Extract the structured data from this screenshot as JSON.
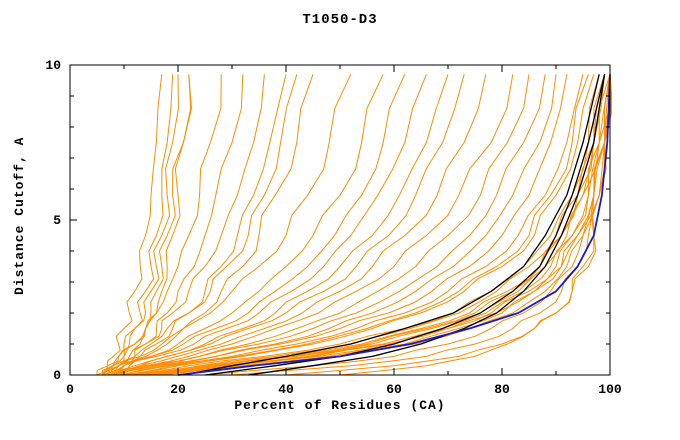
{
  "chart_data": {
    "type": "line",
    "title": "T1050-D3",
    "xlabel": "Percent of Residues (CA)",
    "ylabel": "Distance Cutoff, A",
    "xlim": [
      0,
      100
    ],
    "ylim": [
      0,
      10
    ],
    "x_major_ticks": [
      0,
      20,
      40,
      60,
      80,
      100
    ],
    "x_minor_step": 10,
    "y_major_ticks": [
      0,
      5,
      10
    ],
    "y_minor_step": 1,
    "grid": false,
    "legend": "none",
    "colors": {
      "predictions": "#ff8c00",
      "highlighted": "#000000",
      "best_model": "#1a1acd",
      "axis": "#000000",
      "background": "#ffffff"
    },
    "y_grid": [
      0,
      0.3,
      0.6,
      1.0,
      1.5,
      2.0,
      2.7,
      3.5,
      4.5,
      5.8,
      7.5,
      9.7
    ],
    "series": [
      {
        "name": "predictions",
        "color": "#ff8c00",
        "width": 1,
        "jitter": 1.0,
        "lines": [
          [
            6,
            7,
            8,
            9,
            10,
            11,
            12,
            13,
            14,
            15,
            16,
            17
          ],
          [
            7,
            8,
            9,
            10,
            12,
            13,
            14,
            15,
            16,
            17,
            18,
            19
          ],
          [
            6,
            8,
            10,
            11,
            12,
            14,
            15,
            16,
            17,
            18,
            19,
            20
          ],
          [
            8,
            9,
            11,
            13,
            14,
            15,
            16,
            17,
            18,
            19,
            21,
            22
          ],
          [
            5,
            7,
            9,
            12,
            14,
            16,
            17,
            18,
            19,
            20,
            21,
            22
          ],
          [
            6,
            8,
            10,
            12,
            14,
            16,
            18,
            20,
            22,
            24,
            26,
            28
          ],
          [
            7,
            9,
            12,
            14,
            16,
            18,
            20,
            23,
            25,
            27,
            30,
            32
          ],
          [
            6,
            9,
            11,
            14,
            17,
            19,
            22,
            25,
            28,
            31,
            34,
            36
          ],
          [
            8,
            10,
            13,
            16,
            19,
            22,
            25,
            28,
            31,
            34,
            37,
            40
          ],
          [
            5,
            8,
            12,
            15,
            18,
            22,
            26,
            29,
            33,
            36,
            39,
            42
          ],
          [
            7,
            10,
            14,
            18,
            21,
            25,
            28,
            32,
            35,
            38,
            42,
            45
          ],
          [
            6,
            9,
            13,
            17,
            21,
            26,
            30,
            35,
            40,
            44,
            48,
            52
          ],
          [
            8,
            11,
            15,
            20,
            25,
            30,
            35,
            40,
            45,
            50,
            54,
            58
          ],
          [
            7,
            10,
            15,
            21,
            27,
            33,
            38,
            44,
            49,
            54,
            58,
            62
          ],
          [
            6,
            10,
            16,
            23,
            29,
            35,
            41,
            47,
            52,
            57,
            62,
            66
          ],
          [
            9,
            13,
            18,
            25,
            32,
            38,
            44,
            50,
            56,
            61,
            66,
            70
          ],
          [
            7,
            12,
            18,
            26,
            33,
            40,
            47,
            53,
            59,
            64,
            69,
            73
          ],
          [
            8,
            13,
            20,
            28,
            36,
            43,
            50,
            56,
            62,
            68,
            73,
            77
          ],
          [
            8,
            14,
            22,
            30,
            38,
            46,
            53,
            60,
            66,
            72,
            78,
            82
          ],
          [
            9,
            15,
            24,
            33,
            42,
            50,
            57,
            64,
            70,
            76,
            81,
            85
          ],
          [
            7,
            14,
            24,
            35,
            45,
            53,
            61,
            68,
            74,
            79,
            84,
            88
          ],
          [
            10,
            17,
            27,
            38,
            48,
            56,
            64,
            71,
            77,
            82,
            87,
            90
          ],
          [
            8,
            16,
            27,
            39,
            50,
            59,
            67,
            74,
            80,
            85,
            89,
            92
          ],
          [
            9,
            18,
            30,
            42,
            53,
            62,
            70,
            77,
            83,
            88,
            92,
            95
          ],
          [
            11,
            20,
            32,
            45,
            56,
            65,
            73,
            80,
            86,
            90,
            94,
            97
          ],
          [
            10,
            19,
            31,
            44,
            55,
            64,
            72,
            79,
            85,
            89,
            93,
            96
          ],
          [
            12,
            24,
            38,
            52,
            63,
            72,
            79,
            85,
            90,
            94,
            97,
            99
          ],
          [
            14,
            27,
            42,
            56,
            67,
            76,
            83,
            88,
            92,
            95,
            98,
            100
          ],
          [
            11,
            22,
            36,
            50,
            62,
            71,
            78,
            84,
            89,
            93,
            96,
            98
          ],
          [
            13,
            26,
            41,
            55,
            66,
            75,
            82,
            87,
            91,
            95,
            97,
            99
          ],
          [
            15,
            30,
            46,
            60,
            70,
            78,
            85,
            90,
            93,
            96,
            98,
            100
          ],
          [
            12,
            25,
            40,
            54,
            65,
            74,
            81,
            87,
            91,
            94,
            97,
            99
          ],
          [
            16,
            32,
            48,
            62,
            72,
            80,
            86,
            91,
            94,
            97,
            99,
            100
          ],
          [
            13,
            28,
            44,
            58,
            69,
            77,
            84,
            89,
            93,
            96,
            98,
            100
          ],
          [
            17,
            34,
            50,
            64,
            74,
            82,
            88,
            92,
            95,
            97,
            99,
            100
          ],
          [
            14,
            29,
            45,
            59,
            70,
            79,
            86,
            91,
            94,
            97,
            99,
            100
          ],
          [
            25,
            45,
            60,
            70,
            78,
            84,
            89,
            93,
            95,
            97,
            99,
            100
          ],
          [
            30,
            52,
            66,
            75,
            82,
            87,
            91,
            94,
            96,
            98,
            99,
            100
          ],
          [
            40,
            60,
            72,
            80,
            86,
            90,
            93,
            96,
            97,
            98,
            99,
            100
          ],
          [
            50,
            66,
            75,
            81,
            86,
            90,
            93,
            95,
            97,
            98,
            99,
            100
          ]
        ]
      },
      {
        "name": "highlighted-black",
        "color": "#000000",
        "width": 1.3,
        "jitter": 0,
        "lines": [
          [
            21,
            30,
            40,
            52,
            62,
            71,
            78,
            84,
            88,
            92,
            95,
            98
          ],
          [
            33,
            45,
            56,
            65,
            73,
            79,
            84,
            88,
            91,
            94,
            97,
            99
          ],
          [
            25,
            38,
            50,
            60,
            69,
            76,
            82,
            87,
            90,
            93,
            96,
            99
          ]
        ]
      },
      {
        "name": "best-model-blue",
        "color": "#1a1acd",
        "width": 1.8,
        "jitter": 0,
        "lines": [
          [
            20,
            34,
            50,
            63,
            74,
            83,
            90,
            94,
            97,
            98.5,
            99.5,
            100
          ]
        ]
      }
    ]
  }
}
